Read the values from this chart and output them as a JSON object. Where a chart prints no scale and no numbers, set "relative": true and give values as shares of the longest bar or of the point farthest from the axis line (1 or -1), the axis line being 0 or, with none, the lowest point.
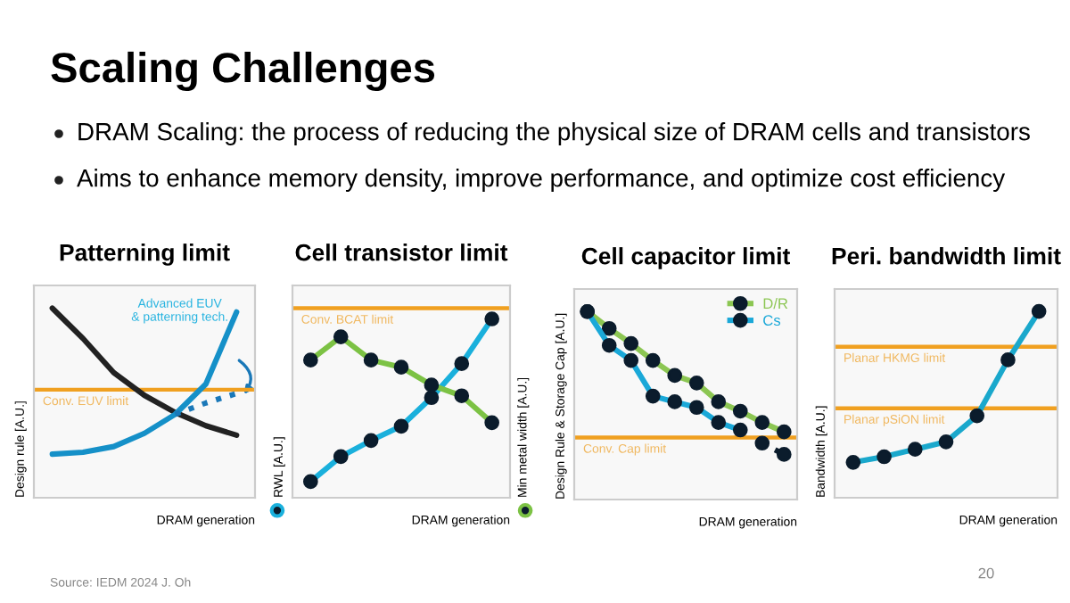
{
  "chart_data": [
    {
      "type": "other",
      "title": "Scaling Challenges",
      "annotations": [
        "DRAM Scaling: the process of reducing the physical size of DRAM cells and transistors",
        "Aims to enhance memory density, improve performance, and optimize cost efficiency",
        "Source: IEDM 2024 J. Oh",
        "20"
      ]
    },
    {
      "type": "line",
      "title": "Patterning limit",
      "xlabel": "DRAM generation",
      "ylabel": "Design rule [A.U.]",
      "relative": true,
      "tick_labels": false,
      "grid": false,
      "legend": false,
      "marker": "none",
      "categories": [
        null,
        null,
        null,
        null,
        null,
        null,
        null
      ],
      "series": [
        {
          "color": "#222222",
          "values": [
            1.0,
            0.84,
            0.66,
            0.54,
            0.45,
            0.38,
            0.33
          ]
        },
        {
          "color": "#1590c8",
          "values": [
            0.23,
            0.24,
            0.27,
            0.34,
            0.44,
            0.6,
            0.98
          ]
        },
        {
          "color": "#1a78b8",
          "line_style": "dotted",
          "values": [
            null,
            null,
            null,
            null,
            0.44,
            0.5,
            0.55
          ]
        }
      ],
      "ref_lines": [
        {
          "axis": "y",
          "value": 0.57,
          "label": "Conv. EUV limit",
          "color": "#f0a020"
        }
      ],
      "annotations": [
        "Advanced EUV\n& patterning tech."
      ]
    },
    {
      "type": "line",
      "title": "Cell transistor limit",
      "xlabel": "DRAM generation",
      "ylabel": "RWL [A.U.]",
      "y2label": "Min metal width [A.U.]",
      "relative": true,
      "tick_labels": false,
      "grid": false,
      "legend": false,
      "marker": "circle",
      "categories": [
        null,
        null,
        null,
        null,
        null,
        null,
        null
      ],
      "series": [
        {
          "color": "#1ab0dc",
          "values": [
            0.09,
            0.23,
            0.32,
            0.4,
            0.56,
            0.75,
            1.0
          ]
        },
        {
          "color": "#7cc244",
          "values": [
            0.77,
            0.9,
            0.77,
            0.73,
            0.63,
            0.57,
            0.42
          ]
        }
      ],
      "ref_lines": [
        {
          "axis": "y",
          "value": 1.06,
          "label": "Conv. BCAT limit",
          "color": "#f0a020"
        }
      ]
    },
    {
      "type": "line",
      "title": "Cell capacitor limit",
      "xlabel": "DRAM generation",
      "ylabel": "Design Rule & Storage Cap [A.U.]",
      "relative": true,
      "tick_labels": false,
      "grid": false,
      "legend": "top right",
      "marker": "circle",
      "categories": [
        null,
        null,
        null,
        null,
        null,
        null,
        null,
        null,
        null,
        null
      ],
      "series": [
        {
          "name": "D/R",
          "color": "#8cc653",
          "values": [
            1.0,
            0.91,
            0.83,
            0.74,
            0.66,
            0.62,
            0.52,
            0.47,
            0.41,
            0.36
          ]
        },
        {
          "name": "Cs",
          "color": "#1aa8d8",
          "values": [
            1.0,
            0.82,
            0.74,
            0.55,
            0.52,
            0.49,
            0.41,
            0.37,
            null,
            null
          ]
        },
        {
          "color": "#0b1c2c",
          "line_style": "dotted",
          "values": [
            null,
            null,
            null,
            null,
            null,
            null,
            null,
            null,
            0.3,
            0.24
          ]
        }
      ],
      "ref_lines": [
        {
          "axis": "y",
          "value": 0.33,
          "label": "Conv. Cap limit",
          "color": "#f0a020"
        }
      ]
    },
    {
      "type": "line",
      "title": "Peri. bandwidth limit",
      "xlabel": "DRAM generation",
      "ylabel": "Bandwidth [A.U.]",
      "relative": true,
      "tick_labels": false,
      "grid": false,
      "legend": false,
      "marker": "circle",
      "categories": [
        null,
        null,
        null,
        null,
        null,
        null,
        null
      ],
      "series": [
        {
          "color": "#1aa8cc",
          "values": [
            0.19,
            0.22,
            0.26,
            0.3,
            0.44,
            0.74,
            1.0
          ]
        }
      ],
      "ref_lines": [
        {
          "axis": "y",
          "value": 0.81,
          "label": "Planar HKMG limit",
          "color": "#f0a020"
        },
        {
          "axis": "y",
          "value": 0.48,
          "label": "Planar pSiON limit",
          "color": "#f0a020"
        }
      ]
    }
  ]
}
